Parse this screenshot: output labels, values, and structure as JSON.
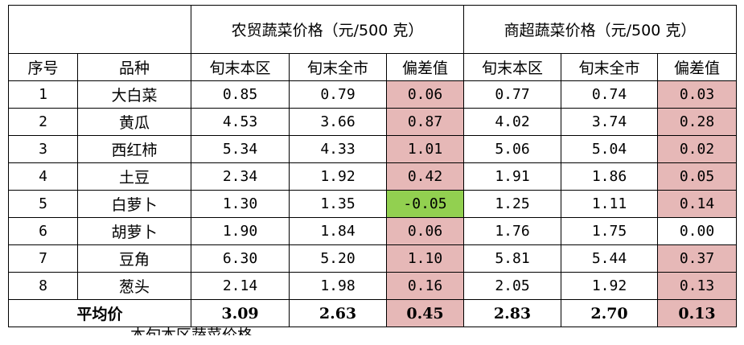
{
  "header": {
    "group1": "农贸蔬菜价格（元/500 克）",
    "group2": "商超蔬菜价格（元/500 克）",
    "col_index": "序号",
    "col_variety": "品种",
    "sub1": "旬末本区",
    "sub2": "旬末全市",
    "sub3": "偏差值"
  },
  "rows": [
    {
      "idx": "1",
      "name": "大白菜",
      "m_local": "0.85",
      "m_city": "0.79",
      "m_dev": "0.06",
      "s_local": "0.77",
      "s_city": "0.74",
      "s_dev": "0.03"
    },
    {
      "idx": "2",
      "name": "黄瓜",
      "m_local": "4.53",
      "m_city": "3.66",
      "m_dev": "0.87",
      "s_local": "4.02",
      "s_city": "3.74",
      "s_dev": "0.28"
    },
    {
      "idx": "3",
      "name": "西红柿",
      "m_local": "5.34",
      "m_city": "4.33",
      "m_dev": "1.01",
      "s_local": "5.06",
      "s_city": "5.04",
      "s_dev": "0.02"
    },
    {
      "idx": "4",
      "name": "土豆",
      "m_local": "2.34",
      "m_city": "1.92",
      "m_dev": "0.42",
      "s_local": "1.91",
      "s_city": "1.86",
      "s_dev": "0.05"
    },
    {
      "idx": "5",
      "name": "白萝卜",
      "m_local": "1.30",
      "m_city": "1.35",
      "m_dev": "-0.05",
      "s_local": "1.25",
      "s_city": "1.11",
      "s_dev": "0.14"
    },
    {
      "idx": "6",
      "name": "胡萝卜",
      "m_local": "1.90",
      "m_city": "1.84",
      "m_dev": "0.06",
      "s_local": "1.76",
      "s_city": "1.75",
      "s_dev": "0.00"
    },
    {
      "idx": "7",
      "name": "豆角",
      "m_local": "6.30",
      "m_city": "5.20",
      "m_dev": "1.10",
      "s_local": "5.81",
      "s_city": "5.44",
      "s_dev": "0.37"
    },
    {
      "idx": "8",
      "name": "葱头",
      "m_local": "2.14",
      "m_city": "1.98",
      "m_dev": "0.16",
      "s_local": "2.05",
      "s_city": "1.92",
      "s_dev": "0.13"
    }
  ],
  "average": {
    "label": "平均价",
    "m_local": "3.09",
    "m_city": "2.63",
    "m_dev": "0.45",
    "s_local": "2.83",
    "s_city": "2.70",
    "s_dev": "0.13"
  },
  "colors": {
    "positive_deviation": "#e6b8b7",
    "negative_deviation": "#92d050"
  },
  "bottom_text": "本旬本区蔬菜价格"
}
